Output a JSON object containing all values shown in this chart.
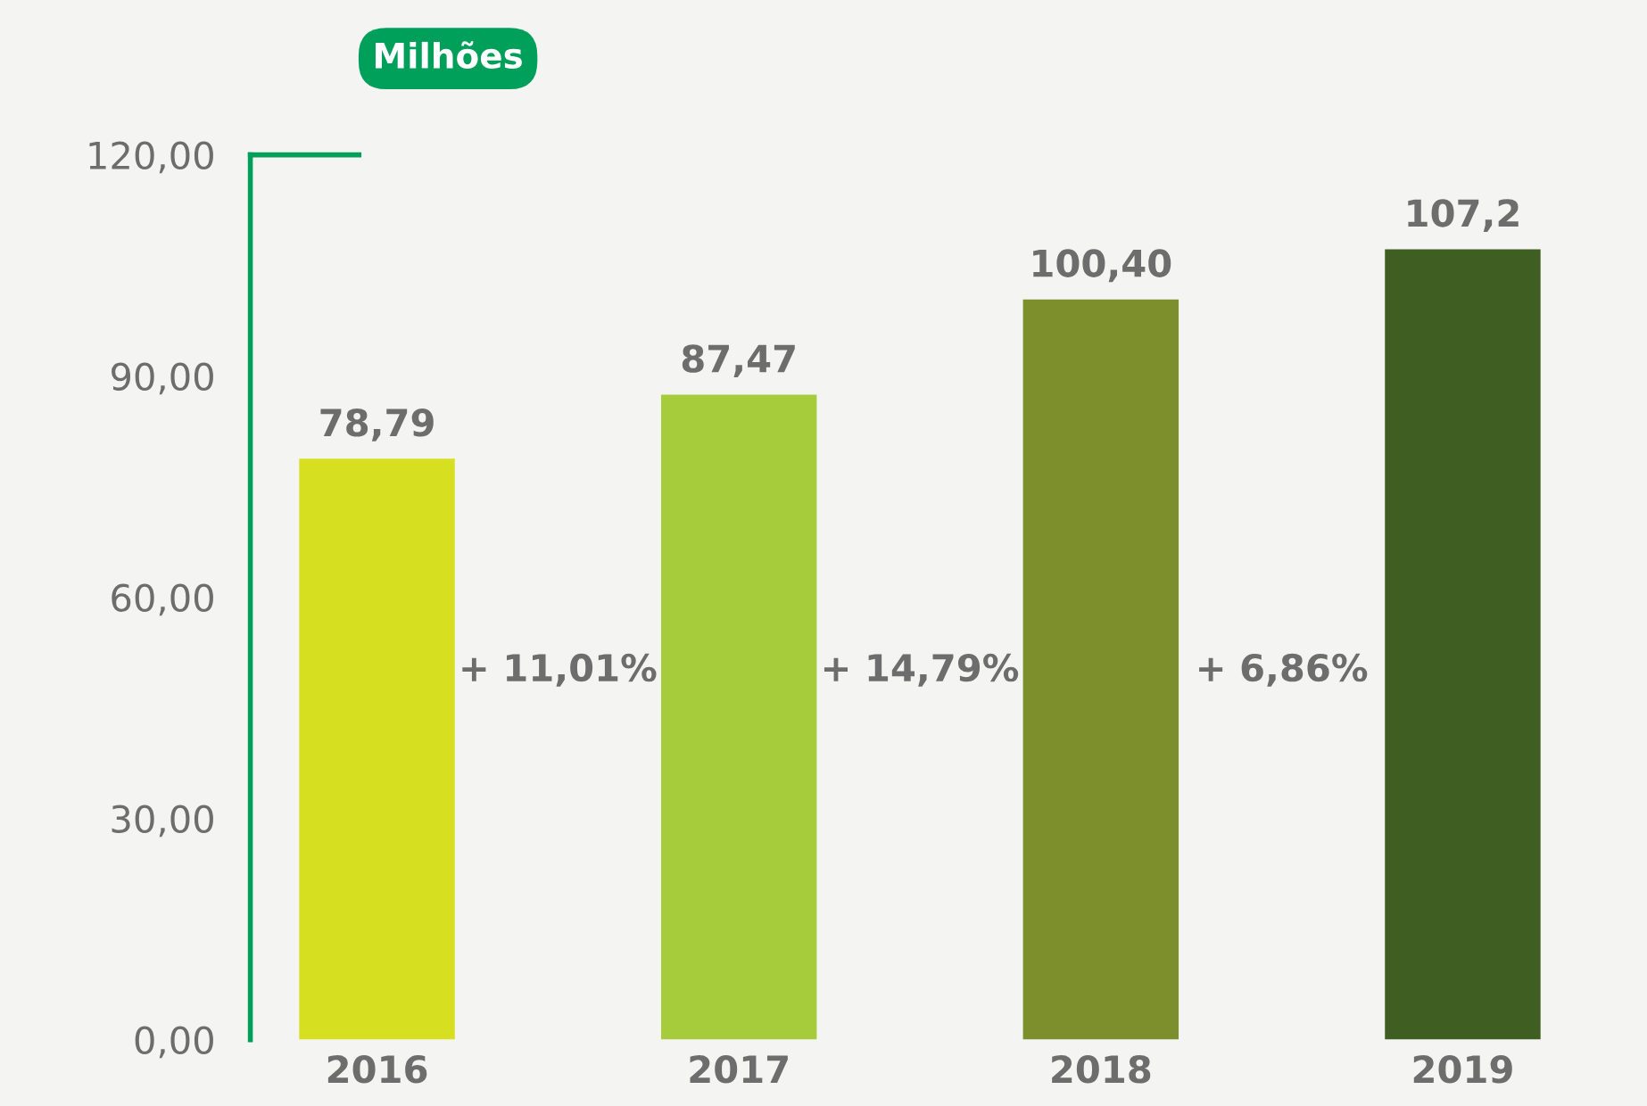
{
  "chart_data": {
    "type": "bar",
    "ylabel": "Milhões",
    "categories": [
      "2016",
      "2017",
      "2018",
      "2019"
    ],
    "values": [
      78.79,
      87.47,
      100.4,
      107.2
    ],
    "colors": [
      "#d6df20",
      "#a6cc3c",
      "#7c8f2c",
      "#3f5e22"
    ],
    "value_labels": [
      "78,79",
      "87,47",
      "100,40",
      "107,2"
    ],
    "ylim": [
      0,
      120
    ],
    "yticks": [
      {
        "value": 0,
        "label": "0,00"
      },
      {
        "value": 30,
        "label": "30,00"
      },
      {
        "value": 60,
        "label": "60,00"
      },
      {
        "value": 90,
        "label": "90,00"
      },
      {
        "value": 120,
        "label": "120,00"
      }
    ],
    "annotations": [
      "+ 11,01%",
      "+ 14,79%",
      "+ 6,86%"
    ],
    "grid": false,
    "legend": false
  }
}
